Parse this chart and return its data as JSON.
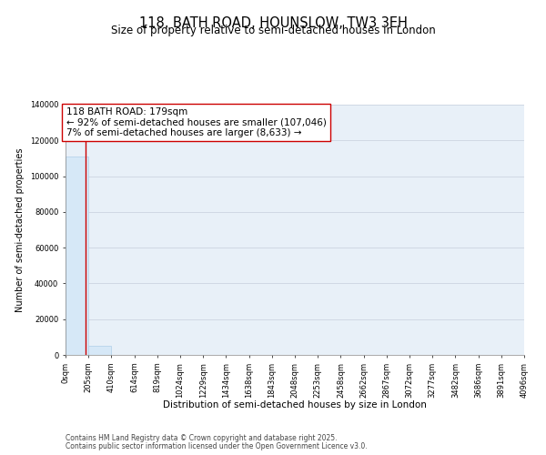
{
  "title": "118, BATH ROAD, HOUNSLOW, TW3 3EH",
  "subtitle": "Size of property relative to semi-detached houses in London",
  "xlabel": "Distribution of semi-detached houses by size in London",
  "ylabel": "Number of semi-detached properties",
  "bar_color": "#d6e8f7",
  "bar_edge_color": "#b0cfe8",
  "highlight_line_color": "#cc0000",
  "annotation_box_edge_color": "#cc0000",
  "annotation_line1": "118 BATH ROAD: 179sqm",
  "annotation_line2": "← 92% of semi-detached houses are smaller (107,046)",
  "annotation_line3": "7% of semi-detached houses are larger (8,633) →",
  "property_size_sqm": 179,
  "bin_edges": [
    0,
    205,
    410,
    614,
    819,
    1024,
    1229,
    1434,
    1638,
    1843,
    2048,
    2253,
    2458,
    2662,
    2867,
    3072,
    3277,
    3482,
    3686,
    3891,
    4096
  ],
  "bin_counts": [
    110800,
    5200,
    200,
    100,
    80,
    60,
    50,
    40,
    30,
    25,
    20,
    18,
    15,
    12,
    10,
    8,
    7,
    6,
    5,
    4
  ],
  "tick_labels": [
    "0sqm",
    "205sqm",
    "410sqm",
    "614sqm",
    "819sqm",
    "1024sqm",
    "1229sqm",
    "1434sqm",
    "1638sqm",
    "1843sqm",
    "2048sqm",
    "2253sqm",
    "2458sqm",
    "2662sqm",
    "2867sqm",
    "3072sqm",
    "3277sqm",
    "3482sqm",
    "3686sqm",
    "3891sqm",
    "4096sqm"
  ],
  "ylim": [
    0,
    140000
  ],
  "yticks": [
    0,
    20000,
    40000,
    60000,
    80000,
    100000,
    120000,
    140000
  ],
  "background_color": "#ffffff",
  "plot_bg_color": "#e8f0f8",
  "grid_color": "#d0d8e4",
  "figsize": [
    6.0,
    5.0
  ],
  "dpi": 100,
  "footer_lines": [
    "Contains HM Land Registry data © Crown copyright and database right 2025.",
    "Contains public sector information licensed under the Open Government Licence v3.0."
  ],
  "title_fontsize": 10.5,
  "subtitle_fontsize": 8.5,
  "annotation_fontsize": 7.5,
  "tick_fontsize": 6.0,
  "axis_label_fontsize": 7.5,
  "ylabel_fontsize": 7.0,
  "footer_fontsize": 5.5
}
